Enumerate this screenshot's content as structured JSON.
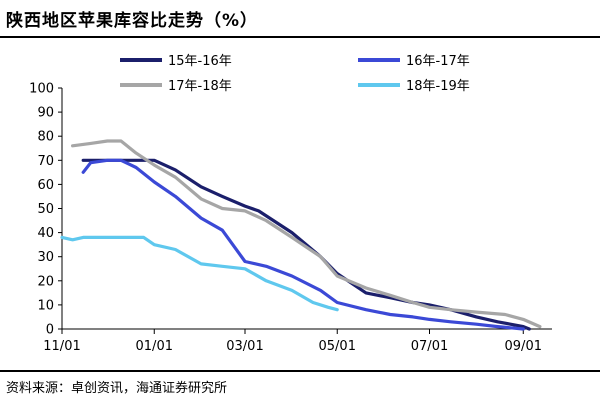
{
  "header": {
    "title": "陕西地区苹果库容比走势（%）"
  },
  "footer": {
    "source": "资料来源：卓创资讯，海通证券研究所"
  },
  "chart_data": {
    "type": "line",
    "title": "陕西地区苹果库容比走势（%）",
    "xlabel": "",
    "ylabel": "",
    "ylim": [
      0,
      100
    ],
    "yticks": [
      0,
      10,
      20,
      30,
      40,
      50,
      60,
      70,
      80,
      90,
      100
    ],
    "xlim": [
      "11/01",
      "09/20"
    ],
    "xticks": [
      "11/01",
      "01/01",
      "03/01",
      "05/01",
      "07/01",
      "09/01"
    ],
    "grid": false,
    "legend_position": "top",
    "series": [
      {
        "name": "15年-16年",
        "color": "#1b1f6b",
        "points": [
          [
            "11/15",
            70
          ],
          [
            "12/01",
            70
          ],
          [
            "12/15",
            70
          ],
          [
            "01/01",
            70
          ],
          [
            "01/15",
            66
          ],
          [
            "02/01",
            59
          ],
          [
            "02/15",
            55
          ],
          [
            "03/01",
            51
          ],
          [
            "03/10",
            49
          ],
          [
            "04/01",
            40
          ],
          [
            "04/20",
            30
          ],
          [
            "05/01",
            23
          ],
          [
            "05/20",
            15
          ],
          [
            "06/05",
            13
          ],
          [
            "06/20",
            11
          ],
          [
            "07/01",
            10
          ],
          [
            "07/15",
            8
          ],
          [
            "08/01",
            5
          ],
          [
            "08/15",
            3
          ],
          [
            "09/01",
            1
          ],
          [
            "09/05",
            0
          ]
        ]
      },
      {
        "name": "16年-17年",
        "color": "#3b49d6",
        "points": [
          [
            "11/15",
            65
          ],
          [
            "11/20",
            69
          ],
          [
            "12/01",
            70
          ],
          [
            "12/10",
            70
          ],
          [
            "12/20",
            67
          ],
          [
            "01/01",
            61
          ],
          [
            "01/15",
            55
          ],
          [
            "02/01",
            46
          ],
          [
            "02/15",
            41
          ],
          [
            "03/01",
            28
          ],
          [
            "03/15",
            26
          ],
          [
            "04/01",
            22
          ],
          [
            "04/20",
            16
          ],
          [
            "05/01",
            11
          ],
          [
            "05/20",
            8
          ],
          [
            "06/05",
            6
          ],
          [
            "06/20",
            5
          ],
          [
            "07/01",
            4
          ],
          [
            "07/15",
            3
          ],
          [
            "08/01",
            2
          ],
          [
            "08/15",
            1
          ],
          [
            "09/01",
            0
          ]
        ]
      },
      {
        "name": "17年-18年",
        "color": "#a6a6a6",
        "points": [
          [
            "11/08",
            76
          ],
          [
            "11/20",
            77
          ],
          [
            "12/01",
            78
          ],
          [
            "12/10",
            78
          ],
          [
            "12/20",
            73
          ],
          [
            "01/01",
            68
          ],
          [
            "01/15",
            63
          ],
          [
            "02/01",
            54
          ],
          [
            "02/15",
            50
          ],
          [
            "03/01",
            49
          ],
          [
            "03/15",
            45
          ],
          [
            "04/01",
            38
          ],
          [
            "04/20",
            30
          ],
          [
            "05/01",
            22
          ],
          [
            "05/20",
            17
          ],
          [
            "06/05",
            14
          ],
          [
            "06/20",
            11
          ],
          [
            "07/01",
            9
          ],
          [
            "07/15",
            8
          ],
          [
            "08/01",
            7
          ],
          [
            "08/20",
            6
          ],
          [
            "09/01",
            4
          ],
          [
            "09/12",
            1
          ]
        ]
      },
      {
        "name": "18年-19年",
        "color": "#5fc8ee",
        "points": [
          [
            "11/01",
            38
          ],
          [
            "11/08",
            37
          ],
          [
            "11/15",
            38
          ],
          [
            "12/01",
            38
          ],
          [
            "12/15",
            38
          ],
          [
            "12/25",
            38
          ],
          [
            "01/01",
            35
          ],
          [
            "01/15",
            33
          ],
          [
            "02/01",
            27
          ],
          [
            "02/15",
            26
          ],
          [
            "03/01",
            25
          ],
          [
            "03/15",
            20
          ],
          [
            "04/01",
            16
          ],
          [
            "04/15",
            11
          ],
          [
            "04/25",
            9
          ],
          [
            "05/01",
            8
          ]
        ]
      }
    ]
  }
}
